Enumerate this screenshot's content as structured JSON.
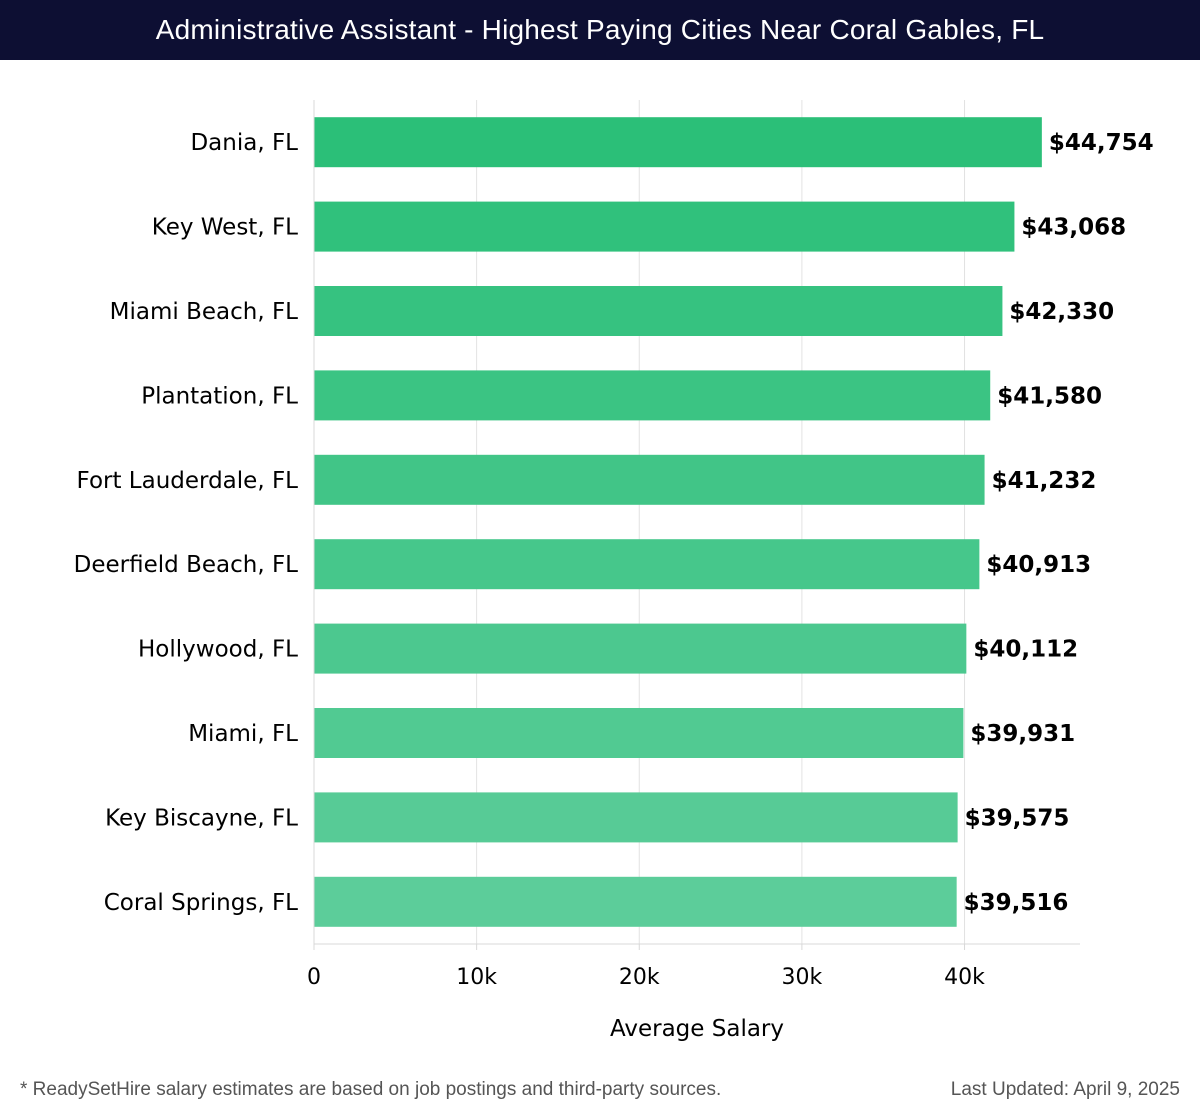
{
  "header": {
    "title": "Administrative Assistant - Highest Paying Cities Near Coral Gables, FL"
  },
  "chart_data": {
    "type": "bar",
    "orientation": "horizontal",
    "title": "Administrative Assistant - Highest Paying Cities Near Coral Gables, FL",
    "xlabel": "Average Salary",
    "ylabel": "",
    "categories": [
      "Dania, FL",
      "Key West, FL",
      "Miami Beach, FL",
      "Plantation, FL",
      "Fort Lauderdale, FL",
      "Deerfield Beach, FL",
      "Hollywood, FL",
      "Miami, FL",
      "Key Biscayne, FL",
      "Coral Springs, FL"
    ],
    "values": [
      44754,
      43068,
      42330,
      41580,
      41232,
      40913,
      40112,
      39931,
      39575,
      39516
    ],
    "value_labels": [
      "$44,754",
      "$43,068",
      "$42,330",
      "$41,580",
      "$41,232",
      "$40,913",
      "$40,112",
      "$39,931",
      "$39,575",
      "$39,516"
    ],
    "xlim": [
      0,
      47100
    ],
    "xticks": [
      0,
      10000,
      20000,
      30000,
      40000
    ],
    "xtick_labels": [
      "0",
      "10k",
      "20k",
      "30k",
      "40k"
    ],
    "grid": "vertical",
    "colors": {
      "bar_top": "#2bbf78",
      "bar_bottom": "#5ccd9a",
      "label": "#000000",
      "grid": "#e2e2e2"
    }
  },
  "footer": {
    "note": "* ReadySetHire salary estimates are based on job postings and third-party sources.",
    "updated": "Last Updated: April 9, 2025"
  }
}
